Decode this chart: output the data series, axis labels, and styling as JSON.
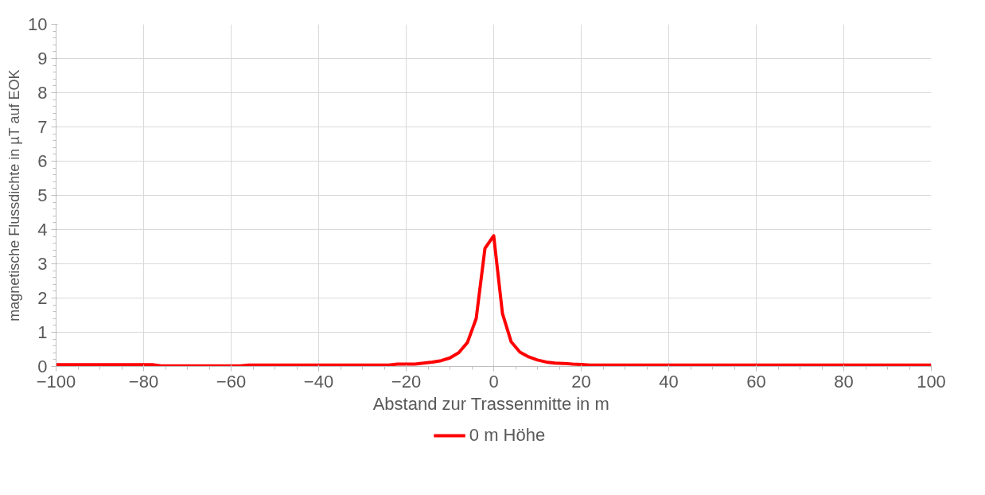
{
  "chart_data": {
    "type": "line",
    "xlabel": "Abstand zur Trassenmitte  in m",
    "ylabel": "magnetische Flussdichte in µT auf EOK",
    "x": [
      -100,
      -98,
      -96,
      -94,
      -92,
      -90,
      -88,
      -86,
      -84,
      -82,
      -80,
      -78,
      -76,
      -74,
      -72,
      -70,
      -68,
      -66,
      -64,
      -62,
      -60,
      -58,
      -56,
      -54,
      -52,
      -50,
      -48,
      -46,
      -44,
      -42,
      -40,
      -38,
      -36,
      -34,
      -32,
      -30,
      -28,
      -26,
      -24,
      -22,
      -20,
      -18,
      -16,
      -14,
      -12,
      -10,
      -8,
      -6,
      -4,
      -2,
      0,
      2,
      4,
      6,
      8,
      10,
      12,
      14,
      16,
      18,
      20,
      22,
      24,
      26,
      28,
      30,
      32,
      34,
      36,
      38,
      40,
      42,
      44,
      46,
      48,
      50,
      52,
      54,
      56,
      58,
      60,
      62,
      64,
      66,
      68,
      70,
      72,
      74,
      76,
      78,
      80,
      82,
      84,
      86,
      88,
      90,
      92,
      94,
      96,
      98,
      100
    ],
    "series": [
      {
        "name": "0 m Höhe",
        "color": "#ff0000",
        "values": [
          0.05,
          0.05,
          0.05,
          0.05,
          0.05,
          0.05,
          0.05,
          0.05,
          0.05,
          0.05,
          0.05,
          0.05,
          0.02,
          0.02,
          0.02,
          0.02,
          0.02,
          0.02,
          0.02,
          0.02,
          0.02,
          0.02,
          0.04,
          0.04,
          0.04,
          0.04,
          0.04,
          0.04,
          0.04,
          0.04,
          0.04,
          0.04,
          0.04,
          0.04,
          0.04,
          0.04,
          0.04,
          0.04,
          0.04,
          0.07,
          0.07,
          0.07,
          0.1,
          0.13,
          0.17,
          0.25,
          0.4,
          0.7,
          1.4,
          3.45,
          3.82,
          1.55,
          0.72,
          0.42,
          0.28,
          0.19,
          0.13,
          0.1,
          0.09,
          0.07,
          0.06,
          0.04,
          0.04,
          0.04,
          0.04,
          0.04,
          0.04,
          0.04,
          0.04,
          0.04,
          0.04,
          0.04,
          0.04,
          0.04,
          0.04,
          0.04,
          0.04,
          0.04,
          0.04,
          0.04,
          0.04,
          0.04,
          0.04,
          0.04,
          0.04,
          0.04,
          0.04,
          0.04,
          0.04,
          0.04,
          0.04,
          0.04,
          0.04,
          0.04,
          0.04,
          0.04,
          0.04,
          0.04,
          0.04,
          0.04,
          0.04
        ]
      }
    ],
    "xlim": [
      -100,
      100
    ],
    "xticks": [
      -100,
      -80,
      -60,
      -40,
      -20,
      0,
      20,
      40,
      60,
      80,
      100
    ],
    "ylim": [
      0,
      10
    ],
    "yticks": [
      0,
      1,
      2,
      3,
      4,
      5,
      6,
      7,
      8,
      9,
      10
    ],
    "grid": true,
    "legend": "bottom",
    "marker": "none",
    "line_style": "solid"
  }
}
